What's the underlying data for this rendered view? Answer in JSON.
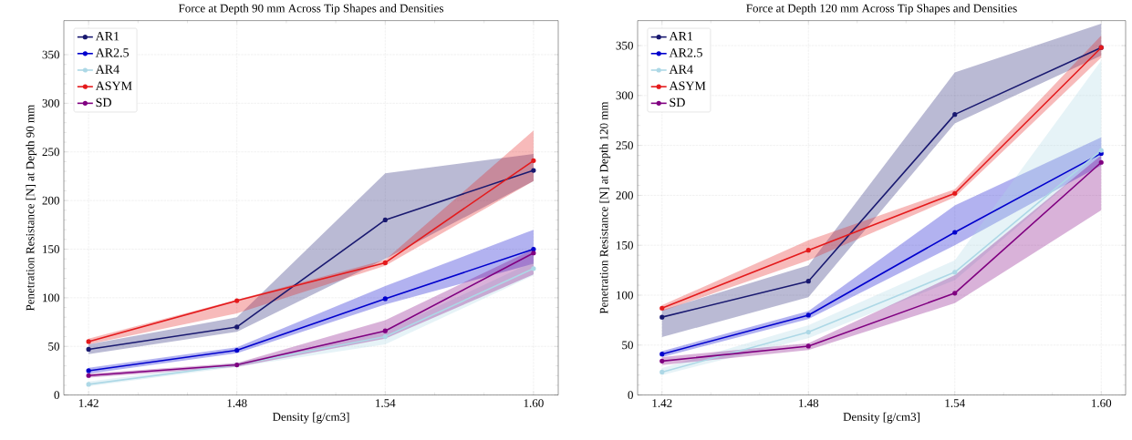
{
  "chart_data": [
    {
      "type": "line",
      "title": "Force at Depth 90 mm Across Tip Shapes and Densities",
      "xlabel": "Density [g/cm3]",
      "ylabel": "Penetration Resistance [N] at Depth 90 mm",
      "x": [
        1.42,
        1.48,
        1.54,
        1.6
      ],
      "xlim": [
        1.41,
        1.61
      ],
      "ylim": [
        0,
        385
      ],
      "xticks": [
        {
          "value": 1.42,
          "label": "1.42"
        },
        {
          "value": 1.48,
          "label": "1.48"
        },
        {
          "value": 1.54,
          "label": "1.54"
        },
        {
          "value": 1.6,
          "label": "1.60"
        }
      ],
      "yticks": [
        0,
        50,
        100,
        150,
        200,
        250,
        300,
        350
      ],
      "grid": true,
      "legend": "top left",
      "marker": "circle",
      "line_style": "solid",
      "series": [
        {
          "name": "AR1",
          "color": "#191970",
          "values": [
            47,
            70,
            180,
            231
          ],
          "lower": [
            42,
            65,
            140,
            220
          ],
          "upper": [
            52,
            80,
            228,
            248
          ]
        },
        {
          "name": "AR2.5",
          "color": "#0000cd",
          "values": [
            25,
            46,
            99,
            150
          ],
          "lower": [
            22,
            43,
            93,
            135
          ],
          "upper": [
            28,
            49,
            112,
            170
          ]
        },
        {
          "name": "AR4",
          "color": "#add8e6",
          "values": [
            11,
            31,
            60,
            130
          ],
          "lower": [
            9,
            29,
            52,
            123
          ],
          "upper": [
            14,
            33,
            66,
            137
          ]
        },
        {
          "name": "ASYM",
          "color": "#e41a1c",
          "values": [
            55,
            97,
            136,
            241
          ],
          "lower": [
            52,
            84,
            133,
            220
          ],
          "upper": [
            58,
            98,
            139,
            272
          ]
        },
        {
          "name": "SD",
          "color": "#800080",
          "values": [
            20,
            31,
            66,
            146
          ],
          "lower": [
            18,
            29,
            58,
            124
          ],
          "upper": [
            22,
            33,
            77,
            150
          ]
        }
      ]
    },
    {
      "type": "line",
      "title": "Force at Depth 120 mm Across Tip Shapes and Densities",
      "xlabel": "Density [g/cm3]",
      "ylabel": "Penetration Resistance [N] at Depth 120 mm",
      "x": [
        1.42,
        1.48,
        1.54,
        1.6
      ],
      "xlim": [
        1.41,
        1.61
      ],
      "ylim": [
        0,
        375
      ],
      "xticks": [
        {
          "value": 1.42,
          "label": "1.42"
        },
        {
          "value": 1.48,
          "label": "1.48"
        },
        {
          "value": 1.54,
          "label": "1.54"
        },
        {
          "value": 1.6,
          "label": "1.60"
        }
      ],
      "yticks": [
        0,
        50,
        100,
        150,
        200,
        250,
        300,
        350
      ],
      "grid": true,
      "legend": "top left",
      "marker": "circle",
      "line_style": "solid",
      "series": [
        {
          "name": "AR1",
          "color": "#191970",
          "values": [
            78,
            114,
            281,
            348
          ],
          "lower": [
            58,
            98,
            272,
            340
          ],
          "upper": [
            85,
            130,
            323,
            372
          ]
        },
        {
          "name": "AR2.5",
          "color": "#0000cd",
          "values": [
            41,
            80,
            163,
            242
          ],
          "lower": [
            38,
            76,
            150,
            230
          ],
          "upper": [
            44,
            84,
            190,
            258
          ]
        },
        {
          "name": "AR4",
          "color": "#add8e6",
          "values": [
            23,
            63,
            123,
            245
          ],
          "lower": [
            20,
            57,
            115,
            240
          ],
          "upper": [
            27,
            70,
            135,
            335
          ]
        },
        {
          "name": "ASYM",
          "color": "#e41a1c",
          "values": [
            87,
            145,
            202,
            348
          ],
          "lower": [
            84,
            135,
            198,
            338
          ],
          "upper": [
            90,
            155,
            206,
            360
          ]
        },
        {
          "name": "SD",
          "color": "#800080",
          "values": [
            34,
            49,
            102,
            233
          ],
          "lower": [
            30,
            45,
            92,
            185
          ],
          "upper": [
            38,
            52,
            120,
            240
          ]
        }
      ]
    }
  ]
}
